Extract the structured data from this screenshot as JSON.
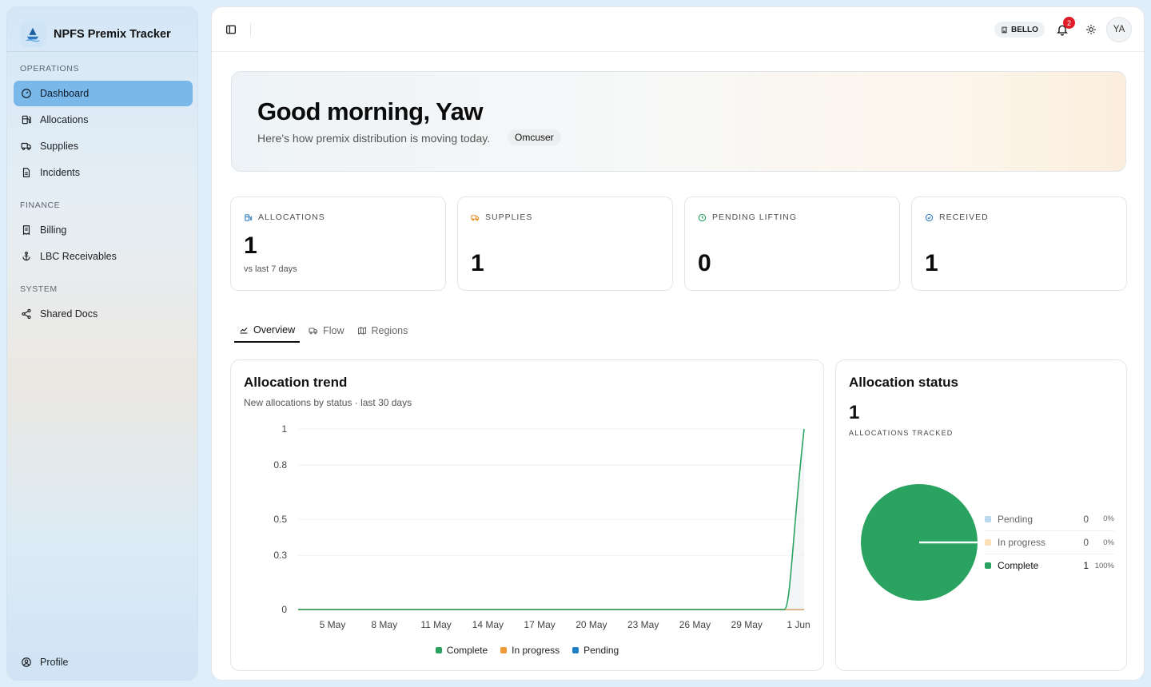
{
  "app": {
    "title": "NPFS Premix Tracker"
  },
  "sidebar": {
    "sections": [
      {
        "label": "Operations",
        "items": [
          {
            "label": "Dashboard",
            "icon": "gauge-icon",
            "active": true
          },
          {
            "label": "Allocations",
            "icon": "fuel-icon"
          },
          {
            "label": "Supplies",
            "icon": "truck-icon"
          },
          {
            "label": "Incidents",
            "icon": "clipboard-icon"
          }
        ]
      },
      {
        "label": "Finance",
        "items": [
          {
            "label": "Billing",
            "icon": "receipt-icon"
          },
          {
            "label": "LBC Receivables",
            "icon": "anchor-icon"
          }
        ]
      },
      {
        "label": "System",
        "items": [
          {
            "label": "Shared Docs",
            "icon": "share-icon"
          }
        ]
      }
    ],
    "footer": {
      "label": "Profile",
      "icon": "user-circle-icon"
    }
  },
  "topbar": {
    "org": "BELLO",
    "notifications": "2",
    "avatar_initials": "YA"
  },
  "hero": {
    "greeting": "Good morning, Yaw",
    "subtitle": "Here's how premix distribution is moving today.",
    "role": "Omcuser"
  },
  "kpis": [
    {
      "label": "Allocations",
      "value": "1",
      "sub": "vs last 7 days",
      "icon": "fuel-icon",
      "color": "#3b82c4"
    },
    {
      "label": "Supplies",
      "value": "1",
      "sub": "",
      "icon": "truck-icon",
      "color": "#e8902a"
    },
    {
      "label": "Pending lifting",
      "value": "0",
      "sub": "",
      "icon": "clock-icon",
      "color": "#2aa360"
    },
    {
      "label": "Received",
      "value": "1",
      "sub": "",
      "icon": "check-circle-icon",
      "color": "#3b82c4"
    }
  ],
  "tabs": [
    {
      "label": "Overview",
      "icon": "chart-icon",
      "active": true
    },
    {
      "label": "Flow",
      "icon": "truck-icon"
    },
    {
      "label": "Regions",
      "icon": "map-icon"
    }
  ],
  "trend_card": {
    "title": "Allocation trend",
    "subtitle": "New allocations by status · last 30 days"
  },
  "status_card": {
    "title": "Allocation status",
    "total": "1",
    "caption": "Allocations tracked"
  },
  "colors": {
    "complete": "#2ba360",
    "in_progress": "#f09a37",
    "pending": "#1f7fc7",
    "pending_light": "#b9d9ee",
    "in_progress_light": "#fbe0b8",
    "accent": "#7ab8ea"
  },
  "chart_data": [
    {
      "type": "line",
      "title": "Allocation trend",
      "subtitle": "New allocations by status · last 30 days",
      "x": [
        "5 May",
        "8 May",
        "11 May",
        "14 May",
        "17 May",
        "20 May",
        "23 May",
        "26 May",
        "29 May",
        "1 Jun"
      ],
      "y_ticks": [
        "0",
        "0.3",
        "0.5",
        "0.8",
        "1"
      ],
      "ylim": [
        0,
        1
      ],
      "series": [
        {
          "name": "Complete",
          "color": "#2ba360",
          "values": [
            0,
            0,
            0,
            0,
            0,
            0,
            0,
            0,
            0,
            1
          ]
        },
        {
          "name": "In progress",
          "color": "#f09a37",
          "values": [
            0,
            0,
            0,
            0,
            0,
            0,
            0,
            0,
            0,
            0
          ]
        },
        {
          "name": "Pending",
          "color": "#1f7fc7",
          "values": [
            0,
            0,
            0,
            0,
            0,
            0,
            0,
            0,
            0,
            0
          ]
        }
      ],
      "grid": true,
      "legend": "bottom"
    },
    {
      "type": "pie",
      "title": "Allocation status",
      "slices": [
        {
          "name": "Pending",
          "count": "0",
          "pct": "0%",
          "value": 0,
          "color": "#b9d9ee"
        },
        {
          "name": "In progress",
          "count": "0",
          "pct": "0%",
          "value": 0,
          "color": "#fbe0b8"
        },
        {
          "name": "Complete",
          "count": "1",
          "pct": "100%",
          "value": 1,
          "color": "#2ba360"
        }
      ],
      "legend": "right"
    }
  ]
}
